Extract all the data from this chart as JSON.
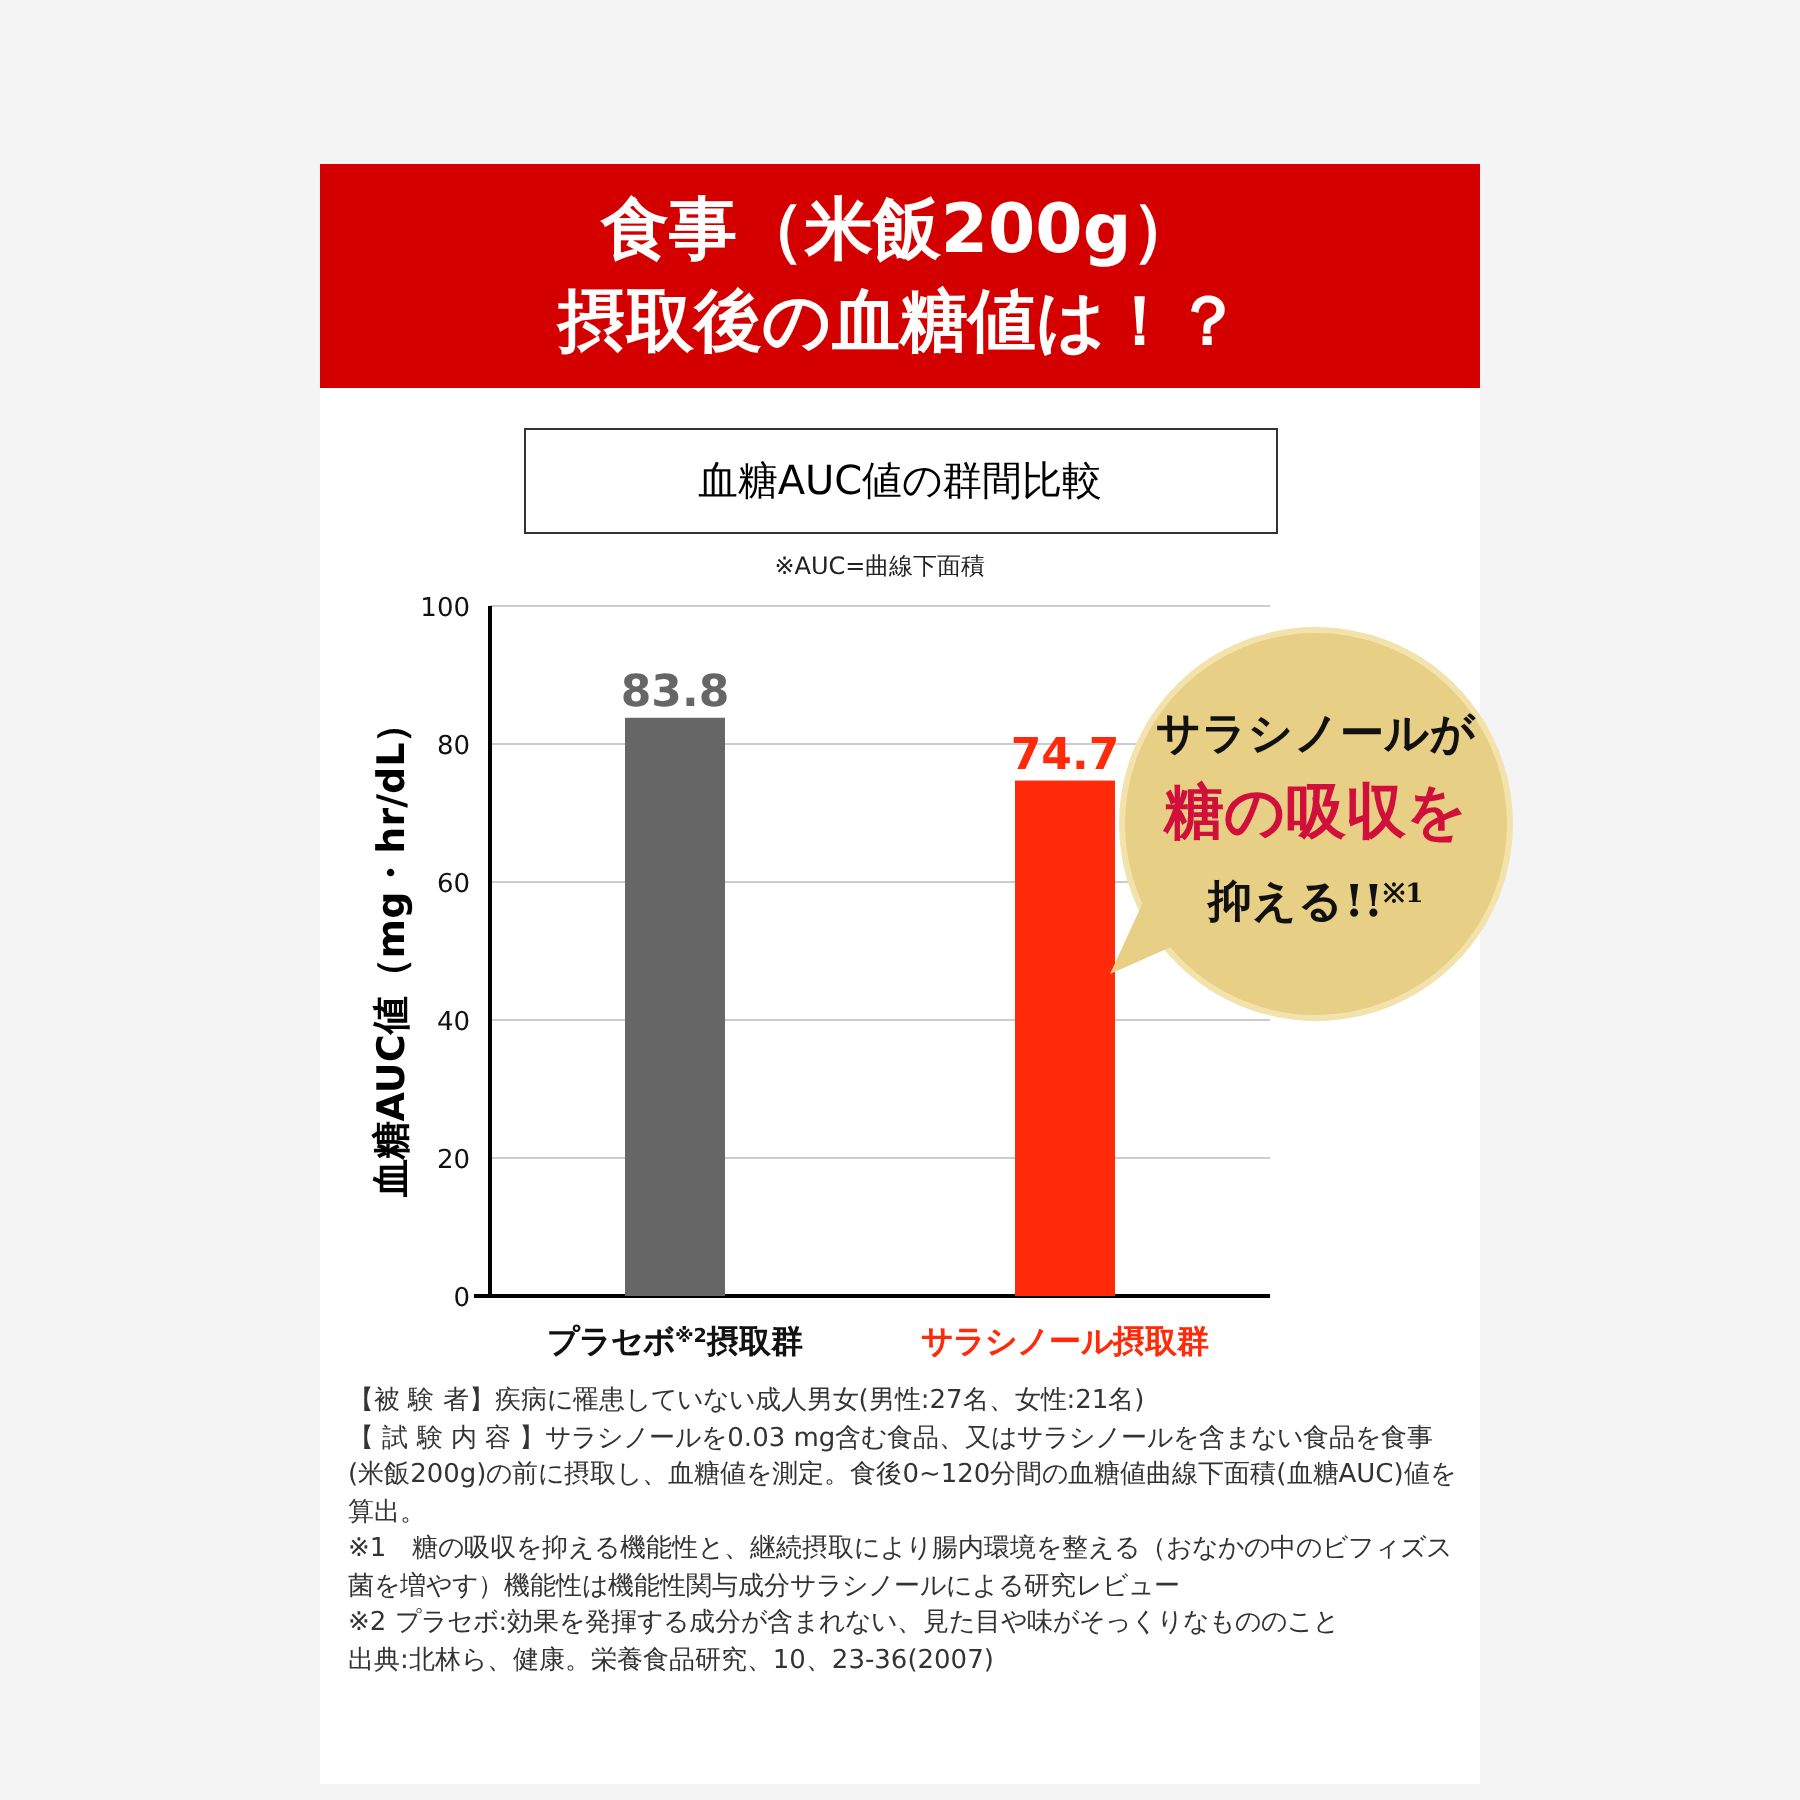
{
  "chart_data": {
    "type": "bar",
    "title": "食事（米飯200g）摂取後の血糖値は！？",
    "subtitle": "血糖AUC値の群間比較",
    "ylabel": "血糖AUC値（mg・hr/dL）",
    "categories": [
      "プラセボ$^{※2}$摂取群",
      "サラシノール摂取群"
    ],
    "values": [
      83.8,
      74.7
    ],
    "colors": [
      "#666666",
      "#ff2a0a"
    ],
    "ylim": [
      0,
      100
    ],
    "yticks": [
      0,
      20,
      40,
      60,
      80,
      100
    ],
    "grid": "y",
    "data_labels": true,
    "annotations": [
      "※AUC=曲線下面積",
      "サラシノールが",
      "糖の吸収を",
      "抑える!!$^{※1}$",
      "【被 験 者】疾病に罹患していない成人男女(男性:27名、女性:21名)",
      "【 試 験 内 容 】サラシノールを0.03 mg含む食品、又はサラシノールを含まない食品を食事(米飯200g)の前に摂取し、血糖値を測定。食後0~120分間の血糖値曲線下面積(血糖AUC)値を算出。",
      "※1　糖の吸収を抑える機能性と、継続摂取により腸内環境を整える（おなかの中のビフィズス菌を増やす）機能性は機能性関与成分サラシノールによる研究レビュー",
      "※2 プラセボ:効果を発揮する成分が含まれない、見た目や味がそっくりなもののこと",
      "出典:北林ら、健康。栄養食品研究、10、23-36(2007)"
    ]
  }
}
